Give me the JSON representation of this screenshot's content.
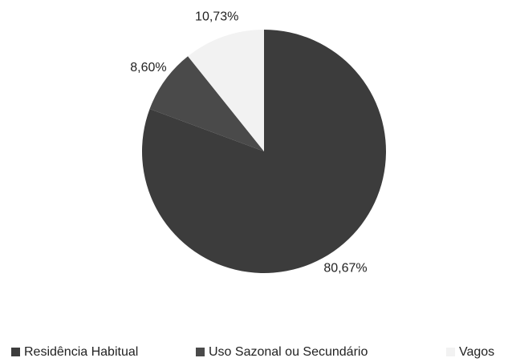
{
  "chart_data": {
    "type": "pie",
    "categories": [
      "Residência Habitual",
      "Uso Sazonal ou Secundário",
      "Vagos"
    ],
    "values": [
      80.67,
      8.6,
      10.73
    ],
    "value_labels": [
      "80,67%",
      "8,60%",
      "10,73%"
    ],
    "colors": [
      "#3c3c3c",
      "#4a4a4a",
      "#f2f2f2"
    ],
    "legend": "bottom"
  }
}
